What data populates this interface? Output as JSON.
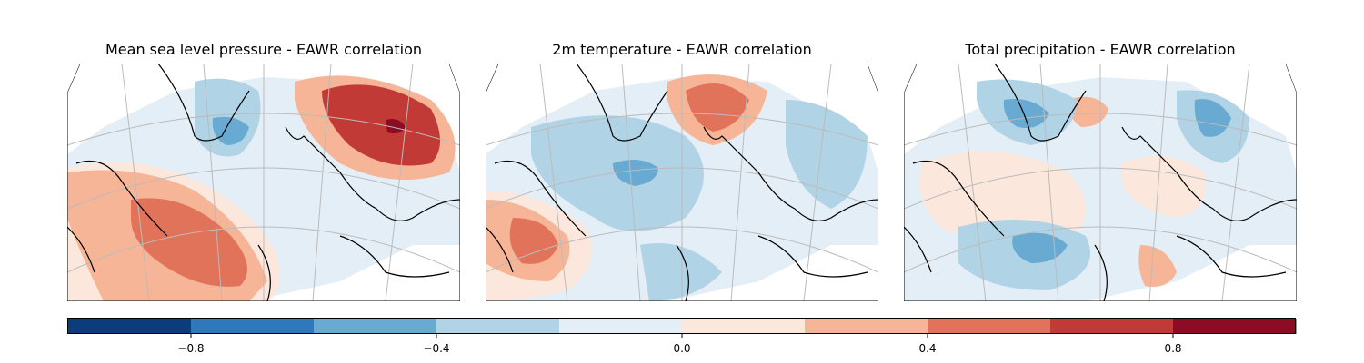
{
  "panels": [
    {
      "title": "Mean sea level pressure - EAWR correlation"
    },
    {
      "title": "2m temperature - EAWR correlation"
    },
    {
      "title": "Total precipitation - EAWR correlation"
    }
  ],
  "colorbar": {
    "min": -1.0,
    "max": 1.0,
    "levels": [
      -1.0,
      -0.8,
      -0.6,
      -0.4,
      -0.2,
      0.0,
      0.2,
      0.4,
      0.6,
      0.8,
      1.0
    ],
    "colors": [
      "#0b3d7a",
      "#2f78b9",
      "#69aad3",
      "#b1d3e6",
      "#e4eef6",
      "#fbe7dc",
      "#f6b596",
      "#e0735a",
      "#c23a36",
      "#8c0c25"
    ],
    "ticks": [
      "−0.8",
      "−0.4",
      "0.0",
      "0.4",
      "0.8"
    ],
    "tick_values": [
      -0.8,
      -0.4,
      0.0,
      0.4,
      0.8
    ]
  }
}
